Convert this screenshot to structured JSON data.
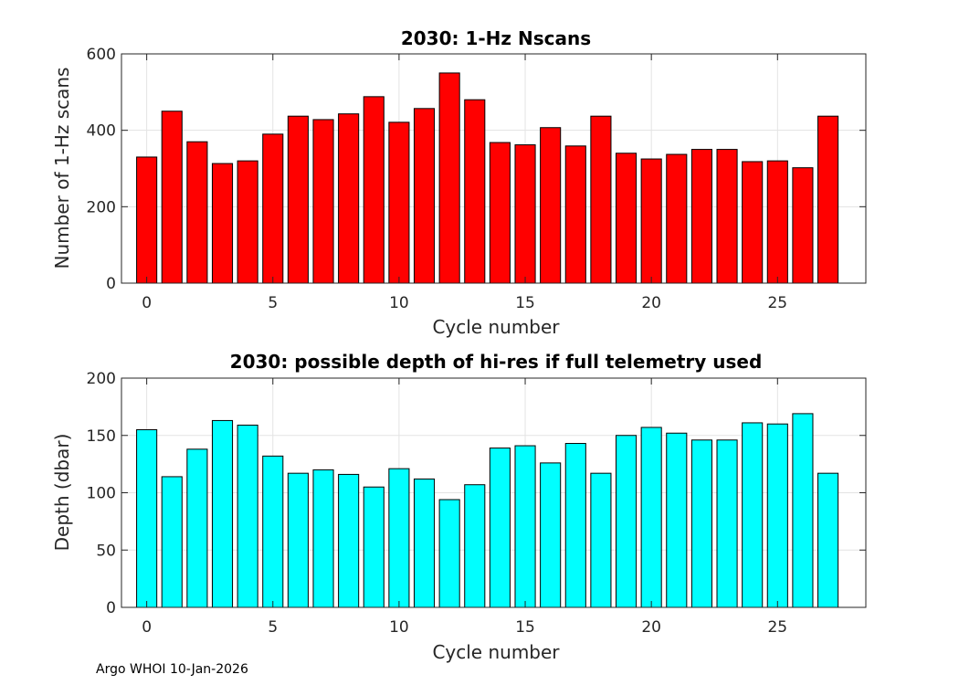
{
  "chart_data": [
    {
      "type": "bar",
      "title": "2030: 1-Hz Nscans",
      "xlabel": "Cycle number",
      "ylabel": "Number of 1-Hz scans",
      "x": [
        0,
        1,
        2,
        3,
        4,
        5,
        6,
        7,
        8,
        9,
        10,
        11,
        12,
        13,
        14,
        15,
        16,
        17,
        18,
        19,
        20,
        21,
        22,
        23,
        24,
        25,
        26,
        27
      ],
      "values": [
        330,
        450,
        370,
        313,
        320,
        390,
        437,
        428,
        443,
        488,
        421,
        457,
        550,
        480,
        368,
        362,
        407,
        359,
        437,
        340,
        325,
        337,
        350,
        350,
        318,
        320,
        302,
        437
      ],
      "xlim": [
        -1,
        28.5
      ],
      "ylim": [
        0,
        600
      ],
      "xticks": [
        0,
        5,
        10,
        15,
        20,
        25
      ],
      "yticks": [
        0,
        200,
        400,
        600
      ],
      "color": "#ff0000",
      "grid": true
    },
    {
      "type": "bar",
      "title": "2030: possible depth of hi-res if full telemetry used",
      "xlabel": "Cycle number",
      "ylabel": "Depth (dbar)",
      "x": [
        0,
        1,
        2,
        3,
        4,
        5,
        6,
        7,
        8,
        9,
        10,
        11,
        12,
        13,
        14,
        15,
        16,
        17,
        18,
        19,
        20,
        21,
        22,
        23,
        24,
        25,
        26,
        27
      ],
      "values": [
        155,
        114,
        138,
        163,
        159,
        132,
        117,
        120,
        116,
        105,
        121,
        112,
        94,
        107,
        139,
        141,
        126,
        143,
        117,
        150,
        157,
        152,
        146,
        146,
        161,
        160,
        169,
        117
      ],
      "xlim": [
        -1,
        28.5
      ],
      "ylim": [
        0,
        200
      ],
      "xticks": [
        0,
        5,
        10,
        15,
        20,
        25
      ],
      "yticks": [
        0,
        50,
        100,
        150,
        200
      ],
      "color": "#00ffff",
      "grid": true
    }
  ],
  "footer": "Argo WHOI 10-Jan-2026"
}
